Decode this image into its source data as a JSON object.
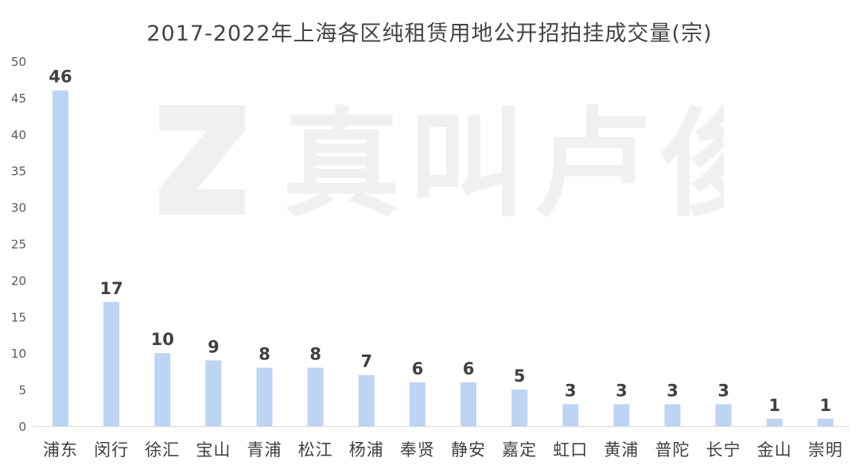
{
  "chart_data": {
    "type": "bar",
    "title": "2017-2022年上海各区纯租赁用地公开招拍挂成交量(宗)",
    "categories": [
      "浦东",
      "闵行",
      "徐汇",
      "宝山",
      "青浦",
      "松江",
      "杨浦",
      "奉贤",
      "静安",
      "嘉定",
      "虹口",
      "黄浦",
      "普陀",
      "长宁",
      "金山",
      "崇明"
    ],
    "values": [
      46,
      17,
      10,
      9,
      8,
      8,
      7,
      6,
      6,
      5,
      3,
      3,
      3,
      3,
      1,
      1
    ],
    "xlabel": "",
    "ylabel": "",
    "ylim": [
      0,
      50
    ],
    "yticks": [
      0,
      5,
      10,
      15,
      20,
      25,
      30,
      35,
      40,
      45,
      50
    ],
    "grid": false,
    "legend": "none",
    "bar_color": "#bdd4f5",
    "data_labels": true
  },
  "watermark": {
    "logo_icon": "z-logo-icon",
    "text": "真叫卢俊",
    "color": "#f0f0f0"
  }
}
